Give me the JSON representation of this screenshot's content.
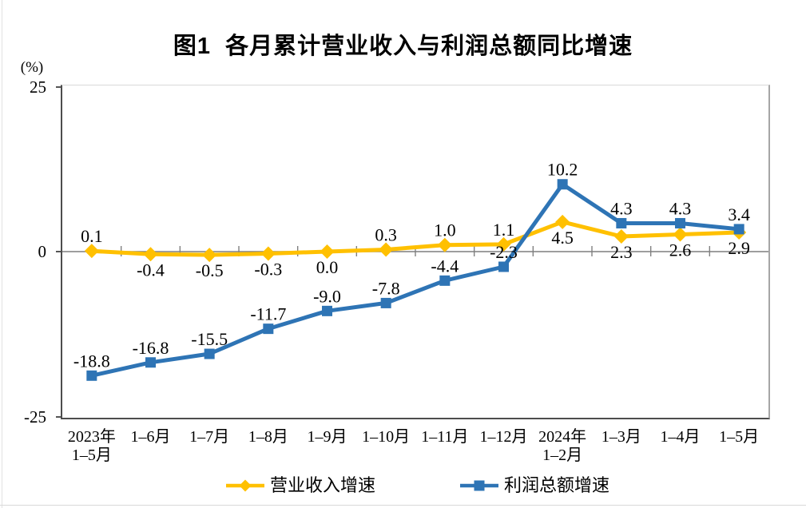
{
  "title": "图1  各月累计营业收入与利润总额同比增速",
  "chart_data": {
    "type": "line",
    "title": "图1  各月累计营业收入与利润总额同比增速",
    "unit_label": "(%)",
    "categories": [
      "2023年\n1–5月",
      "1–6月",
      "1–7月",
      "1–8月",
      "1–9月",
      "1–10月",
      "1–11月",
      "1–12月",
      "2024年\n1–2月",
      "1–3月",
      "1–4月",
      "1–5月"
    ],
    "y_ticks": [
      "25",
      "0",
      "-25"
    ],
    "ylim": [
      -25,
      25
    ],
    "grid": "zero-line-only",
    "legend_position": "bottom",
    "axis_colors": {
      "zero_line": "#7f7f7f",
      "left_axis": "#4d4d4d",
      "top_border": "#d9d9d9",
      "right_border": "#a6a6a6"
    },
    "series": [
      {
        "name": "营业收入增速",
        "color": "#FFC000",
        "marker": "diamond",
        "values": [
          0.1,
          -0.4,
          -0.5,
          -0.3,
          0.0,
          0.3,
          1.0,
          1.1,
          4.5,
          2.3,
          2.6,
          2.9
        ],
        "label_side": [
          "above",
          "below",
          "below",
          "below",
          "below",
          "above",
          "above",
          "above",
          "below",
          "below",
          "below",
          "below"
        ]
      },
      {
        "name": "利润总额增速",
        "color": "#2E74B5",
        "marker": "square",
        "values": [
          -18.8,
          -16.8,
          -15.5,
          -11.7,
          -9.0,
          -7.8,
          -4.4,
          -2.3,
          10.2,
          4.3,
          4.3,
          3.4
        ],
        "label_side": [
          "above",
          "above",
          "above",
          "above",
          "above",
          "above",
          "above",
          "above",
          "above",
          "above",
          "above",
          "above"
        ]
      }
    ]
  }
}
